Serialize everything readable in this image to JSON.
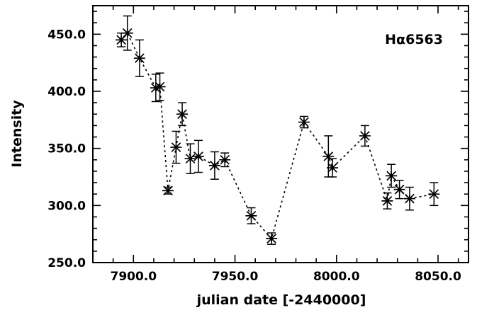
{
  "chart_data": {
    "type": "scatter",
    "xlabel": "julian date [-2440000]",
    "ylabel": "Intensity",
    "annotation": "Hα6563",
    "xlim": [
      7880,
      8065
    ],
    "ylim": [
      250,
      475
    ],
    "xticks": [
      7900,
      7950,
      8000,
      8050
    ],
    "xtick_labels": [
      "7900.0",
      "7950.0",
      "8000.0",
      "8050.0"
    ],
    "yticks": [
      250,
      300,
      350,
      400,
      450
    ],
    "ytick_labels": [
      "250.0",
      "300.0",
      "350.0",
      "400.0",
      "450.0"
    ],
    "marker": "asterisk",
    "connect": "dashed",
    "points": [
      {
        "x": 7894,
        "y": 445,
        "err": 6
      },
      {
        "x": 7897,
        "y": 451,
        "err": 15
      },
      {
        "x": 7903,
        "y": 429,
        "err": 16
      },
      {
        "x": 7911,
        "y": 403,
        "err": 12
      },
      {
        "x": 7913,
        "y": 404,
        "err": 12
      },
      {
        "x": 7917,
        "y": 313,
        "err": 3
      },
      {
        "x": 7921,
        "y": 351,
        "err": 14
      },
      {
        "x": 7924,
        "y": 380,
        "err": 10
      },
      {
        "x": 7928,
        "y": 341,
        "err": 13
      },
      {
        "x": 7932,
        "y": 343,
        "err": 14
      },
      {
        "x": 7940,
        "y": 335,
        "err": 12
      },
      {
        "x": 7945,
        "y": 340,
        "err": 6
      },
      {
        "x": 7958,
        "y": 291,
        "err": 7
      },
      {
        "x": 7968,
        "y": 271,
        "err": 5
      },
      {
        "x": 7984,
        "y": 373,
        "err": 5
      },
      {
        "x": 7996,
        "y": 343,
        "err": 18
      },
      {
        "x": 7998,
        "y": 333,
        "err": 8
      },
      {
        "x": 8014,
        "y": 361,
        "err": 9
      },
      {
        "x": 8025,
        "y": 304,
        "err": 7
      },
      {
        "x": 8027,
        "y": 326,
        "err": 10
      },
      {
        "x": 8031,
        "y": 314,
        "err": 8
      },
      {
        "x": 8036,
        "y": 306,
        "err": 10
      },
      {
        "x": 8048,
        "y": 310,
        "err": 10
      }
    ]
  }
}
